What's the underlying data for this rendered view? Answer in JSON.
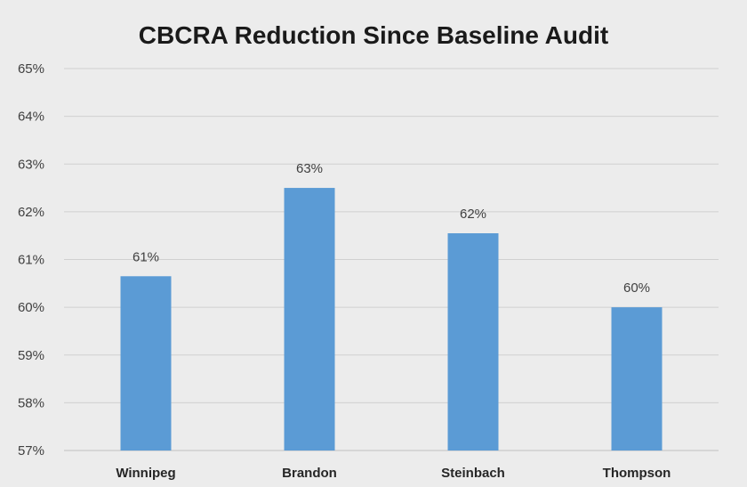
{
  "chart_data": {
    "type": "bar",
    "title": "CBCRA Reduction Since Baseline Audit",
    "xlabel": "",
    "ylabel": "",
    "categories": [
      "Winnipeg",
      "Brandon",
      "Steinbach",
      "Thompson"
    ],
    "values": [
      60.65,
      62.5,
      61.55,
      60.0
    ],
    "data_labels": [
      "61%",
      "63%",
      "62%",
      "60%"
    ],
    "ylim": [
      57,
      65
    ],
    "yticks": [
      57,
      58,
      59,
      60,
      61,
      62,
      63,
      64,
      65
    ],
    "ytick_labels": [
      "57%",
      "58%",
      "59%",
      "60%",
      "61%",
      "62%",
      "63%",
      "64%",
      "65%"
    ],
    "grid": true,
    "legend": "none",
    "bar_color": "#5b9bd5"
  }
}
